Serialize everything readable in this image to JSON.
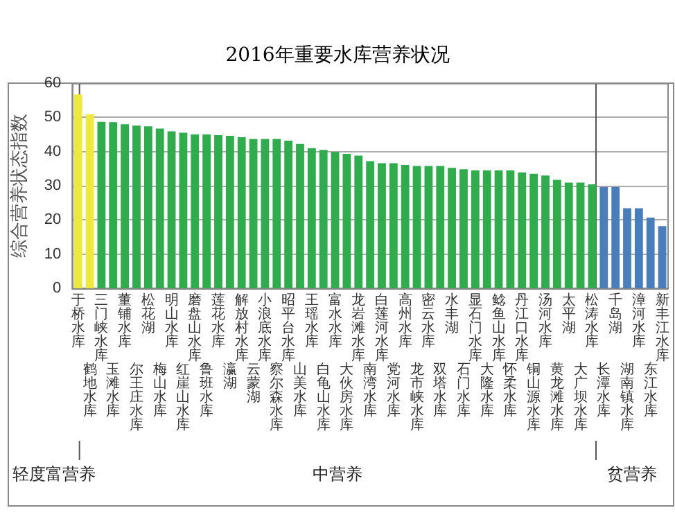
{
  "chart_data": {
    "type": "bar",
    "title": "2016年重要水库营养状况",
    "ylabel": "综合营养状态指数",
    "categories": [
      "于桥水库",
      "鹤地水库",
      "三门峡水库",
      "玉滩水库",
      "董铺水库",
      "尔王庄水库",
      "松花湖",
      "梅山水库",
      "明山水库",
      "红崖山水库",
      "磨盘山水库",
      "鲁班水库",
      "莲花水库",
      "瀛湖",
      "解放村水库",
      "云蒙湖",
      "小浪底水库",
      "察尔森水库",
      "昭平台水库",
      "山美水库",
      "王瑶水库",
      "白龟山水库",
      "富水水库",
      "大伙房水库",
      "龙岩滩水库",
      "南湾水库",
      "白莲河水库",
      "党河水库",
      "高州水库",
      "龙市峡水库",
      "密云水库",
      "双塔水库",
      "水丰湖",
      "石门水库",
      "显石门水库",
      "大隆水库",
      "鲶鱼山水库",
      "怀柔水库",
      "丹江口水库",
      "铜山源水库",
      "汤河水库",
      "黄龙滩水库",
      "太平湖",
      "大广坝水库",
      "松涛水库",
      "长潭水库",
      "千岛湖",
      "湖南镇水库",
      "漳河水库",
      "东江水库",
      "新丰江水库"
    ],
    "values": [
      56.7,
      50.9,
      48.7,
      48.6,
      48.0,
      47.6,
      47.4,
      46.7,
      45.9,
      45.5,
      45.0,
      45.0,
      44.8,
      44.6,
      44.2,
      43.7,
      43.7,
      43.7,
      43.2,
      42.2,
      41.0,
      40.5,
      39.9,
      39.3,
      38.8,
      37.2,
      36.6,
      36.6,
      36.1,
      35.8,
      35.8,
      35.8,
      35.2,
      34.8,
      34.5,
      34.5,
      34.5,
      34.5,
      33.9,
      33.5,
      33.0,
      31.7,
      30.9,
      30.9,
      30.4,
      29.6,
      29.6,
      23.4,
      23.4,
      20.7,
      18.2
    ],
    "colors": [
      "#eeea3c",
      "#eeea3c",
      "#2fac4c",
      "#2fac4c",
      "#2fac4c",
      "#2fac4c",
      "#2fac4c",
      "#2fac4c",
      "#2fac4c",
      "#2fac4c",
      "#2fac4c",
      "#2fac4c",
      "#2fac4c",
      "#2fac4c",
      "#2fac4c",
      "#2fac4c",
      "#2fac4c",
      "#2fac4c",
      "#2fac4c",
      "#2fac4c",
      "#2fac4c",
      "#2fac4c",
      "#2fac4c",
      "#2fac4c",
      "#2fac4c",
      "#2fac4c",
      "#2fac4c",
      "#2fac4c",
      "#2fac4c",
      "#2fac4c",
      "#2fac4c",
      "#2fac4c",
      "#2fac4c",
      "#2fac4c",
      "#2fac4c",
      "#2fac4c",
      "#2fac4c",
      "#2fac4c",
      "#2fac4c",
      "#2fac4c",
      "#2fac4c",
      "#2fac4c",
      "#2fac4c",
      "#2fac4c",
      "#2fac4c",
      "#4a7dbb",
      "#4a7dbb",
      "#4a7dbb",
      "#4a7dbb",
      "#4a7dbb",
      "#4a7dbb"
    ],
    "ylim": [
      0,
      60
    ],
    "yticks": [
      0,
      10,
      20,
      30,
      40,
      50,
      60
    ],
    "grid": "y",
    "annotations": [
      "轻度富营养",
      "中营养",
      "贫营养"
    ]
  }
}
